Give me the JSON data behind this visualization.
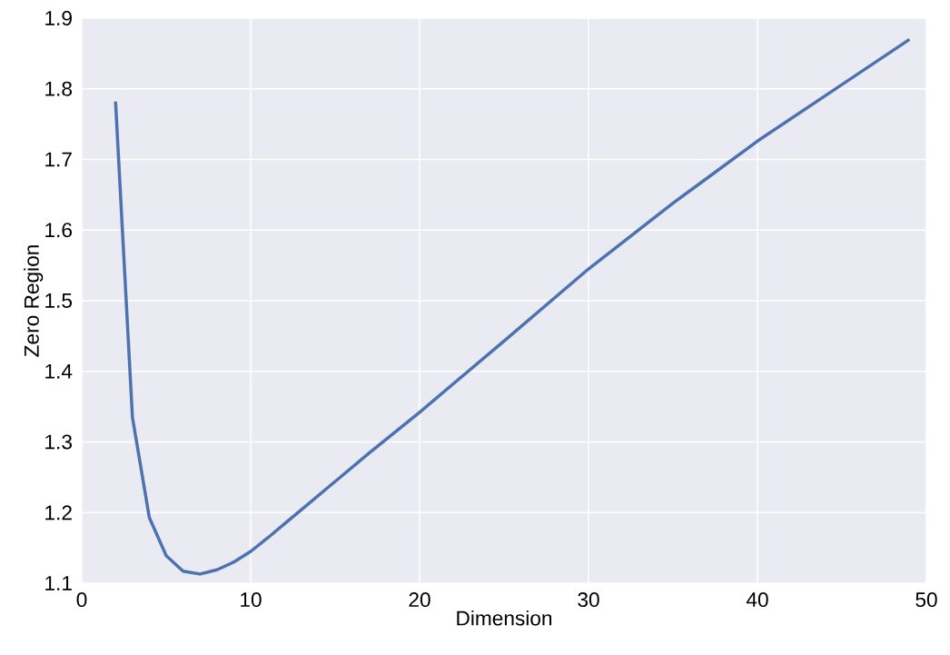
{
  "chart_data": {
    "type": "line",
    "xlabel": "Dimension",
    "ylabel": "Zero Region",
    "x": [
      2,
      3,
      4,
      5,
      6,
      7,
      8,
      9,
      10,
      11,
      12,
      13,
      14,
      15,
      17,
      20,
      25,
      30,
      35,
      40,
      45,
      49
    ],
    "series": [
      {
        "color": "#4c72b0",
        "values": [
          1.782,
          1.335,
          1.193,
          1.139,
          1.117,
          1.113,
          1.119,
          1.13,
          1.145,
          1.164,
          1.184,
          1.204,
          1.224,
          1.244,
          1.284,
          1.342,
          1.443,
          1.545,
          1.638,
          1.726,
          1.806,
          1.87
        ]
      }
    ],
    "xlim": [
      0,
      50
    ],
    "ylim": [
      1.1,
      1.9
    ],
    "xticks": [
      0,
      10,
      20,
      30,
      40,
      50
    ],
    "yticks": [
      1.1,
      1.2,
      1.3,
      1.4,
      1.5,
      1.6,
      1.7,
      1.8,
      1.9
    ],
    "grid": true,
    "marker": "none",
    "line_style": "solid"
  }
}
